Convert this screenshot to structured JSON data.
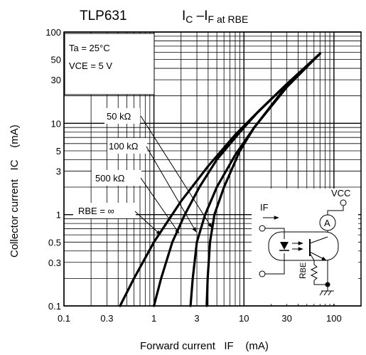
{
  "part_number": "TLP631",
  "title": {
    "main": "I",
    "main_sub": "C",
    "dash": " –I",
    "if_sub": "F",
    "at": " at R",
    "rbe_sub": "BE"
  },
  "conditions": {
    "ta": "Ta = 25°C",
    "vce": "VCE = 5 V"
  },
  "axes": {
    "xlabel": "Forward current   IF    (mA)",
    "ylabel": "Collector current   IC    (mA)"
  },
  "circuit": {
    "if_label": "IF",
    "vcc_label": "VCC",
    "ammeter_label": "A",
    "rbe_label_r": "R",
    "rbe_label_be": "BE"
  },
  "chart_data": {
    "type": "line",
    "title": "IC –IF at RBE",
    "xlabel": "Forward current IF (mA)",
    "ylabel": "Collector current IC (mA)",
    "xscale": "log",
    "yscale": "log",
    "xlim": [
      0.1,
      200
    ],
    "ylim": [
      0.1,
      100
    ],
    "grid": true,
    "x_ticks": [
      {
        "value": 0.1,
        "label": "0.1"
      },
      {
        "value": 0.3,
        "label": "0.3"
      },
      {
        "value": 1,
        "label": "1"
      },
      {
        "value": 3,
        "label": "3"
      },
      {
        "value": 10,
        "label": "10"
      },
      {
        "value": 30,
        "label": "30"
      },
      {
        "value": 100,
        "label": "100"
      }
    ],
    "y_ticks": [
      {
        "value": 0.1,
        "label": "0.1"
      },
      {
        "value": 0.3,
        "label": "0.3"
      },
      {
        "value": 0.5,
        "label": "0.5"
      },
      {
        "value": 1,
        "label": "1"
      },
      {
        "value": 3,
        "label": "3"
      },
      {
        "value": 5,
        "label": "5"
      },
      {
        "value": 10,
        "label": "10"
      },
      {
        "value": 30,
        "label": "30"
      },
      {
        "value": 50,
        "label": "50"
      },
      {
        "value": 100,
        "label": "100"
      }
    ],
    "series": [
      {
        "name": "RBE = ∞",
        "x": [
          0.42,
          0.6,
          1.0,
          2.0,
          4.0,
          8.0,
          15,
          30,
          70
        ],
        "y": [
          0.1,
          0.2,
          0.5,
          1.4,
          3.4,
          7.5,
          14,
          27,
          58
        ]
      },
      {
        "name": "500 kΩ",
        "x": [
          1.0,
          1.2,
          1.6,
          2.2,
          3.2,
          5.0,
          9.0,
          14,
          30,
          70
        ],
        "y": [
          0.1,
          0.2,
          0.5,
          1.0,
          2.0,
          4.0,
          8.0,
          13,
          27,
          58
        ]
      },
      {
        "name": "100 kΩ",
        "x": [
          2.55,
          2.7,
          3.0,
          3.7,
          5.0,
          8.0,
          13,
          30,
          70
        ],
        "y": [
          0.1,
          0.2,
          0.5,
          1.0,
          2.0,
          4.5,
          9.0,
          26,
          58
        ]
      },
      {
        "name": "50 kΩ",
        "x": [
          3.85,
          3.95,
          4.2,
          4.7,
          6.0,
          9.0,
          13,
          30,
          70
        ],
        "y": [
          0.1,
          0.2,
          0.5,
          1.0,
          2.0,
          5.0,
          9.0,
          25,
          58
        ]
      }
    ],
    "annotations": [
      "50 kΩ",
      "100 kΩ",
      "500 kΩ",
      "RBE = ∞"
    ]
  }
}
